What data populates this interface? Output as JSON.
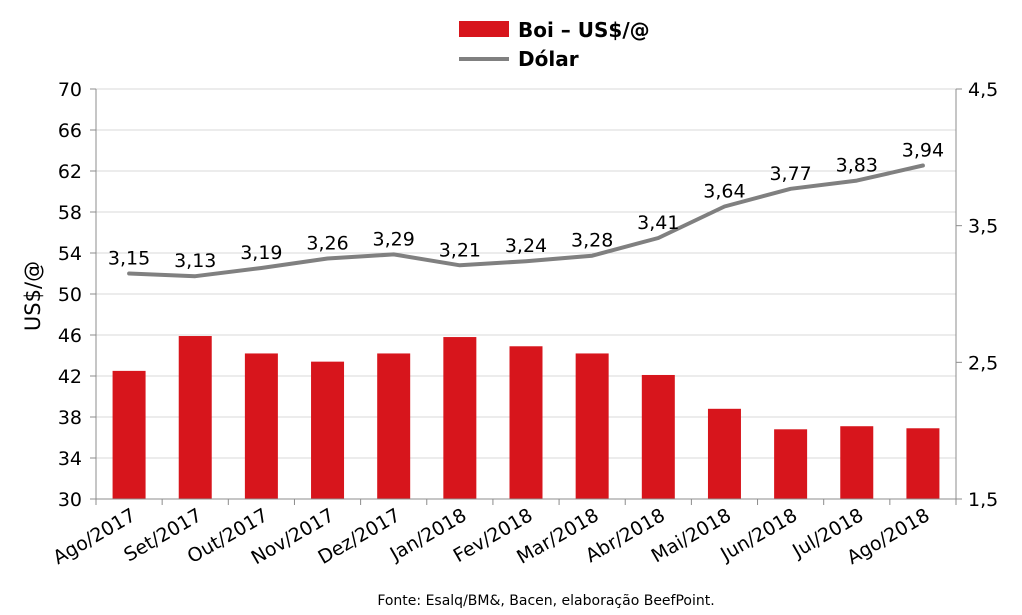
{
  "chart_data": {
    "type": "bar",
    "categories": [
      "Ago/2017",
      "Set/2017",
      "Out/2017",
      "Nov/2017",
      "Dez/2017",
      "Jan/2018",
      "Fev/2018",
      "Mar/2018",
      "Abr/2018",
      "Mai/2018",
      "Jun/2018",
      "Jul/2018",
      "Ago/2018"
    ],
    "series": [
      {
        "name": "Boi – US$/@",
        "type": "bar",
        "axis": "left",
        "color": "#d7151c",
        "values": [
          42.5,
          45.9,
          44.2,
          43.4,
          44.2,
          45.8,
          44.9,
          44.2,
          42.1,
          38.8,
          36.8,
          37.1,
          36.9
        ]
      },
      {
        "name": "Dólar",
        "type": "line",
        "axis": "right",
        "color": "#808080",
        "values": [
          3.15,
          3.13,
          3.19,
          3.26,
          3.29,
          3.21,
          3.24,
          3.28,
          3.41,
          3.64,
          3.77,
          3.83,
          3.94
        ],
        "labels": [
          "3,15",
          "3,13",
          "3,19",
          "3,26",
          "3,29",
          "3,21",
          "3,24",
          "3,28",
          "3,41",
          "3,64",
          "3,77",
          "3,83",
          "3,94"
        ]
      }
    ],
    "ylabel": "US$/@",
    "ylim": [
      30,
      70
    ],
    "yticks": [
      30,
      34,
      38,
      42,
      46,
      50,
      54,
      58,
      62,
      66,
      70
    ],
    "y2lim": [
      1.5,
      4.5
    ],
    "y2ticks": [
      "1,5",
      "2,5",
      "3,5",
      "4,5"
    ],
    "y2tick_values": [
      1.5,
      2.5,
      3.5,
      4.5
    ],
    "grid": true,
    "legend_position": "top-center",
    "source": "Fonte: Esalq/BM&, Bacen, elaboração BeefPoint."
  }
}
